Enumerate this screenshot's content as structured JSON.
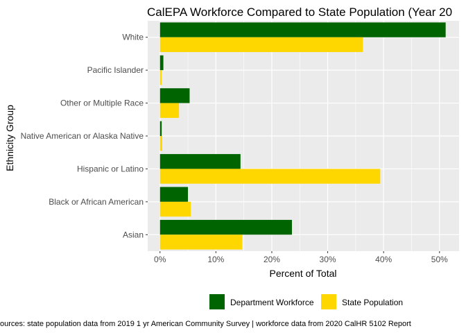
{
  "chart_data": {
    "type": "bar",
    "orientation": "horizontal",
    "title": "CalEPA Workforce Compared to State Population (Year 20",
    "xlabel": "Percent of Total",
    "ylabel": "Ethnicity Group",
    "caption": "ources: state population data from 2019 1 yr American Community Survey  |  workforce data from 2020 CalHR 5102 Report",
    "categories": [
      "White",
      "Pacific Islander",
      "Other or Multiple Race",
      "Native American or Alaska Native",
      "Hispanic or Latino",
      "Black or African American",
      "Asian"
    ],
    "series": [
      {
        "name": "Department Workforce",
        "color": "#006400",
        "values": [
          51.1,
          0.6,
          5.3,
          0.3,
          14.4,
          5.0,
          23.6
        ]
      },
      {
        "name": "State Population",
        "color": "#FFD700",
        "values": [
          36.3,
          0.3,
          3.4,
          0.4,
          39.4,
          5.5,
          14.7
        ]
      }
    ],
    "xlim": [
      -2.2,
      53.5
    ],
    "x_ticks": [
      0,
      10,
      20,
      30,
      40,
      50
    ],
    "x_tick_labels": [
      "0%",
      "10%",
      "20%",
      "30%",
      "40%",
      "50%"
    ],
    "grid": true,
    "panel_background": "#EBEBEB",
    "legend_position": "bottom"
  }
}
